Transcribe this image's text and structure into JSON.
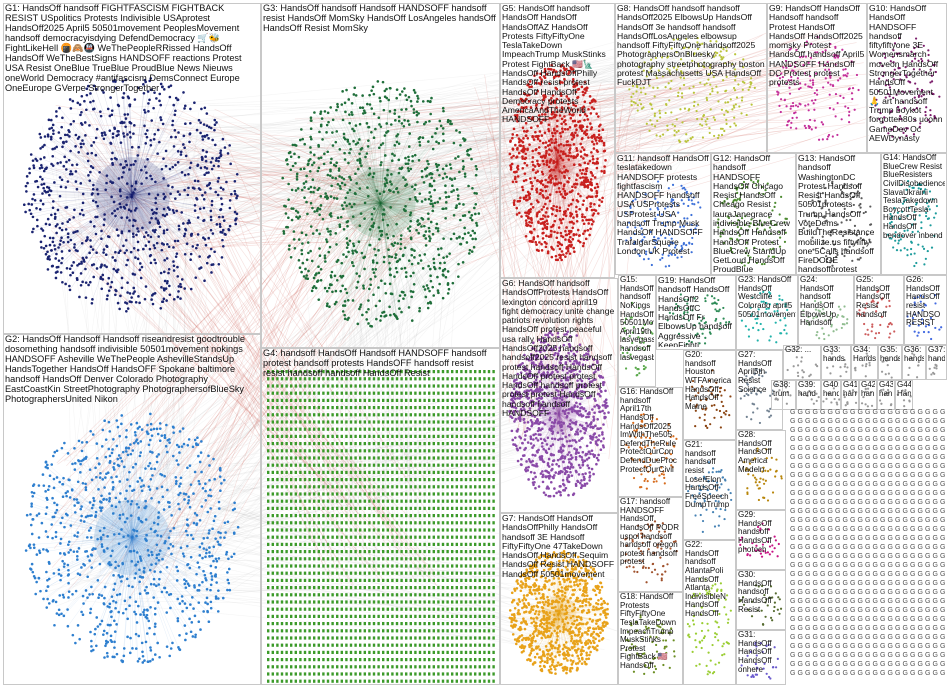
{
  "graph": {
    "groups": [
      {
        "id": "G1",
        "label": "G1: HandsOff handsoff FIGHTFASCISM FIGHTBACK RESIST USpolitics Protests Indivisible USAprotest HandsOff2025 April5 50501movement PeoplesMovement handsoff democracyisdying DefendDemocracy 🛒🐝 FightLikeHell 🍘🙈🚇 WeThePeopleRRissed HandsOff HandsOff WeTheBestSigns HANDSOFF reactions Protest USA Resist OneBlue TrueBlue ProudBlue News Nieuws oneWorld Democracy #antifascism DemsConnect Europe OneEurope GVerpe StrongerTogether",
        "color": "#1a2370"
      },
      {
        "id": "G2",
        "label": "G2: HandsOff Handsoff Handsoff riseandresist goodtrouble dosomething handsoff indivisible 50501movement nokings HANDSOFF Asheville WeThePeople AshevilleStandsUp HandsTogether HandsOff HandsOFF Spokane baltimore handsoff HandsOff Denver Colorado Photography EastCoastKin StreetPhotography PhotographersofBlueSky PhotographersUnited Nikon",
        "color": "#2e7fcf"
      },
      {
        "id": "G3",
        "label": "G3: HandsOff handsoff Handsoff HANDSOFF handsoff resist HandsOff MomSky HandsOff LosAngeles handsOff HandsOff Resist MomSky",
        "color": "#1f6e3a"
      },
      {
        "id": "G4",
        "label": "G4: handsoff HandsOff Handsoff HANDSOFF handsoff protest handsoff protests HandsOFF handsoff resist resist handsoff handsoff HandsOff Resist",
        "color": "#3c9a2a"
      },
      {
        "id": "G5",
        "label": "G5: HandsOff handsoff HandsOff HandsOff HandsOffAZ HandsOff Protests FiftyFiftyOne TeslaTakeDown ImpeachTrump MuskStinks Protest FightBack 🇺🇸🗽 HandsOff HandsOffPhilly HandsOff resist protest HandsOff HandsOff Democracy protests AmericaAndTheWorld HANDSOFF",
        "color": "#c8201e"
      },
      {
        "id": "G6",
        "label": "G6: HandsOff handsoff HandsOffProtests HandsOff lexington concord april19 fight democracy unite change patriots revolution rights HandsOff protest peaceful usa rally HandsOff HandsOff2025 handsoff handsoff2025 resist handsoff protest handsoff HandsOff HandsOff protest protest HandsOff handsoff protest protest protest HandsOff handsoff handsoff HANDSOFF",
        "color": "#8a4aa8"
      },
      {
        "id": "G7",
        "label": "G7: HandsOff HandsOff HandsOffPhilly HandsOff handsoff 3E Handsoff FiftyFiftyOne 47TakeDown HandsOff HandsOff Sequim HandsOff Resist HANDSOFF HandsOff 50501movement",
        "color": "#e8a21a"
      },
      {
        "id": "G8",
        "label": "G8: HandsOff handsoff handsoff HandsOff2025 ElbowsUp HandsOff HandsOff 3e handsoff handsoff HandsOffLosAngeles elbowsup handsoff FiftyFiftyOne handsoff2025 PhotographersOnBluesky photography streetphotography boston protest Massachusetts USA HandsOff FuckDJT",
        "color": "#b9c33a"
      },
      {
        "id": "G9",
        "label": "G9: HandsOff HandsOff Handsoff handsoff Protest HandsOff HandsOff HandsOff2025 momsky Protest HandsOff handsoff April5 HANDSOFF HandsOff DC Protest protest protests",
        "color": "#c42f9a"
      },
      {
        "id": "G10",
        "label": "G10: HandsOff HandsOff HANDSOFF handsoff fiftyfiftyone 3E Womensmarch moveon HandsOff StrongerTogether HandsOff 50501Movement 🙏 art handsoff Trump boykot forgotten80s uconn GameDev Oc AEWDynasty",
        "color": "#7a1b6a"
      },
      {
        "id": "G11",
        "label": "G11: handsoff HandsOff teslatakedown HANDSOFF protests fightfascism HANDSOFF handsoff USA USProtests USProtest USA handsoff Trump Musk HandsOff HANDSOFF TrafalgarSquare London UK Protest",
        "color": "#3b6fd8"
      },
      {
        "id": "G12",
        "label": "G12: HandsOff handsoff HANDSOFF HandsOff Chicago Resist HandsOff Chicago Resist lauraJanegrace indivisible BlueCrew HandsOff Handsoff HandsOff Protest BlueCrew StandUp GetLoud HandsOff ProudBlue ProudBlue",
        "color": "#4b8a2f"
      },
      {
        "id": "G13",
        "label": "G13: HandsOff handsoff WashingtonDC Protest Handsoff Resist HandsOff 50501protests Trump HandsOff VoteDems BuildTheResistance mobilize.us fiftyfifty one 5Calls handsoff FireDOGE handsoffprotest",
        "color": "#5a5a5a"
      },
      {
        "id": "G14",
        "label": "G14: HandsOff BlueCrew Resist BlueResisters CivilDisobedience SlavaUkraini TeslaTakedown BoycottTesla HandsOff HandsOff bendover inbend",
        "color": "#1d9c9c"
      },
      {
        "id": "G15",
        "label": "G15: HandsOff handsoff NoKings HandsOff 50501Movement April19th lasvegasstrip handsoff lasvegasblvd",
        "color": "#59a84a"
      },
      {
        "id": "G16",
        "label": "G16: HandsOff handsoff April17th HandsOff HandsOff2025 ImWithThe505 DefendTheRule ProtectOurCon DefendDueProc ProtectOurCivil",
        "color": "#d66c1e"
      },
      {
        "id": "G17",
        "label": "G17: handsoff HANDSOFF HandsOff HandsOff PODR uspol handsoff handsoff oregon protest handsoff protest",
        "color": "#a0522d"
      },
      {
        "id": "G18",
        "label": "G18: HandsOff Protests FiftyFiftyOne TeslaTakeDown ImpeachTrump MuskStinks Protest FightBack 🇺🇸 HandsOff",
        "color": "#6b8e23"
      },
      {
        "id": "G19",
        "label": "G19: HandsOff handsoff HandsOff HandsOff2 HandsOffC HandsOff Fr ElbowsUp handsoff Aggressive KeepFighti",
        "color": "#2e8b57"
      },
      {
        "id": "G20",
        "label": "G20: handsoff Houston WTFAmerica HandsOff HandsOff Maine",
        "color": "#8b4513"
      },
      {
        "id": "G21",
        "label": "G21: handsoff handsoff resist LoserElon HandsOff FreeSpeech DumpTrump",
        "color": "#4682b4"
      },
      {
        "id": "G22",
        "label": "G22: HandsOff handsoff AtlantaPoli HandsOff Atlanta IndivisibleN HandsOff HandsOff",
        "color": "#9acd32"
      },
      {
        "id": "G23",
        "label": "G23: HandsOff HandsOff Westcliffe Colorado april5 50501movement",
        "color": "#20b2aa"
      },
      {
        "id": "G24",
        "label": "G24: HandsOff handsoff HandsOff ElbowsUp Handsoff",
        "color": "#8fbc8f"
      },
      {
        "id": "G25",
        "label": "G25: HandsOff HandsOff Resist handsoff",
        "color": "#cd5c5c"
      },
      {
        "id": "G26",
        "label": "G26: HandsOff HandsOff resist HANDSO RESIST",
        "color": "#4169e1"
      },
      {
        "id": "G27",
        "label": "G27: HandsOff April5th Resist Science",
        "color": "#708090"
      },
      {
        "id": "G28",
        "label": "G28: HandsOff HandsOff America Madeln",
        "color": "#b8860b"
      },
      {
        "id": "G29",
        "label": "G29: HandsOff handsoff HandsOff photoch",
        "color": "#c71585"
      },
      {
        "id": "G30",
        "label": "G30: HandsOff handsoff HandsOff Resist",
        "color": "#556b2f"
      },
      {
        "id": "G31",
        "label": "G31: HandsOff HandsOff HandsOff onhere",
        "color": "#6a5acd"
      },
      {
        "id": "G32",
        "label": "G32: ...",
        "color": "#999999"
      },
      {
        "id": "G33",
        "label": "G33: hands",
        "color": "#999999"
      },
      {
        "id": "G34",
        "label": "G34: Hands",
        "color": "#999999"
      },
      {
        "id": "G35",
        "label": "G35: hands",
        "color": "#999999"
      },
      {
        "id": "G36",
        "label": "G36: hands",
        "color": "#999999"
      },
      {
        "id": "G37",
        "label": "G37: hands",
        "color": "#999999"
      },
      {
        "id": "G38",
        "label": "G38: trum",
        "color": "#999999"
      },
      {
        "id": "G39",
        "label": "G39: hand",
        "color": "#999999"
      },
      {
        "id": "G40",
        "label": "G40: hand",
        "color": "#999999"
      },
      {
        "id": "G41",
        "label": "G41: hand",
        "color": "#999999"
      },
      {
        "id": "G42",
        "label": "G42: han",
        "color": "#999999"
      },
      {
        "id": "G43",
        "label": "G43: han",
        "color": "#999999"
      },
      {
        "id": "G44",
        "label": "G44: Han",
        "color": "#999999"
      }
    ],
    "small_cluster_prefix": "G"
  }
}
